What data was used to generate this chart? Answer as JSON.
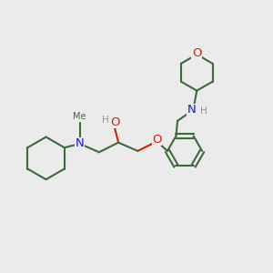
{
  "background_color": "#ebebeb",
  "bond_color": "#3a6b3a",
  "nitrogen_color": "#1515e0",
  "oxygen_color": "#d42000",
  "hydrogen_color": "#8a9a8a",
  "line_width": 1.5,
  "font_size": 8.5,
  "figure_size": [
    3.0,
    3.0
  ],
  "dpi": 100,
  "xlim": [
    0,
    11
  ],
  "ylim": [
    0,
    11
  ]
}
